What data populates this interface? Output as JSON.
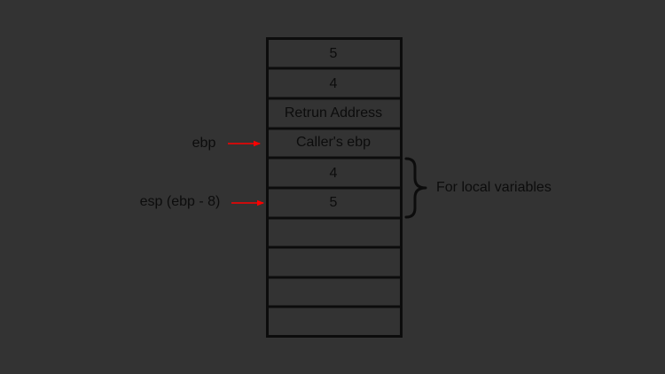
{
  "colors": {
    "background": "#333333",
    "ink": "#0c0c0c",
    "arrow": "#ff0000"
  },
  "stack": {
    "cells": [
      "5",
      "4",
      "Retrun Address",
      "Caller's ebp",
      "4",
      "5",
      "",
      "",
      "",
      ""
    ]
  },
  "pointers": {
    "ebp": "ebp",
    "esp": "esp (ebp - 8)"
  },
  "brace": {
    "label": "For local variables"
  }
}
